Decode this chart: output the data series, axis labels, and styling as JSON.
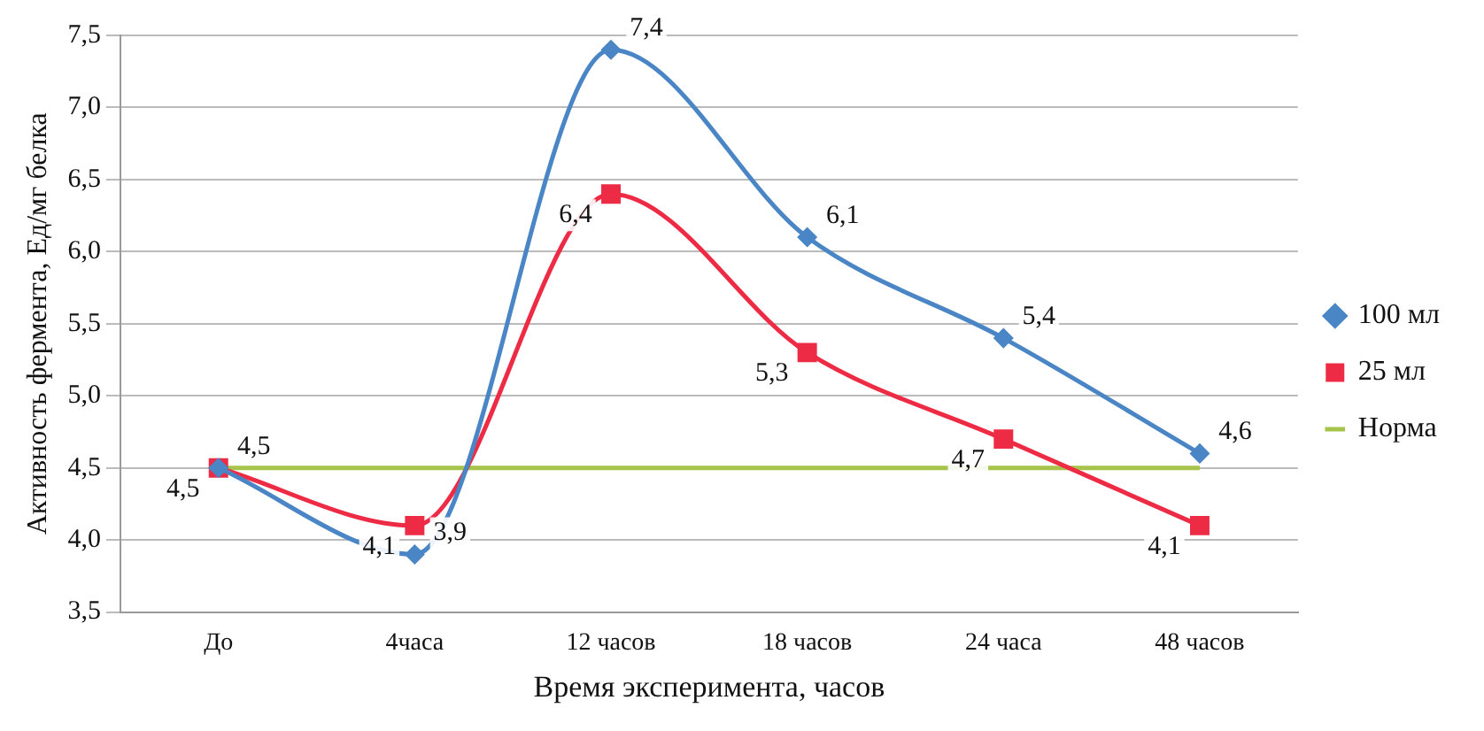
{
  "chart_data": {
    "type": "line",
    "xlabel": "Время эксперимента, часов",
    "ylabel": "Активность фермента, Ед/мг белка",
    "categories": [
      "До",
      "4часа",
      "12 часов",
      "18 часов",
      "24 часа",
      "48 часов"
    ],
    "series": [
      {
        "name": "100 мл",
        "color": "#4a86c5",
        "marker": "diamond",
        "values": [
          4.5,
          3.9,
          7.4,
          6.1,
          5.4,
          4.6
        ],
        "value_labels": [
          "4,5",
          "3,9",
          "7,4",
          "6,1",
          "5,4",
          "4,6"
        ]
      },
      {
        "name": "25 мл",
        "color": "#ee2b45",
        "marker": "square",
        "values": [
          4.5,
          4.1,
          6.4,
          5.3,
          4.7,
          4.1
        ],
        "value_labels": [
          "4,5",
          "4,1",
          "6,4",
          "5,3",
          "4,7",
          "4,1"
        ]
      },
      {
        "name": "Норма",
        "color": "#a6c44a",
        "marker": "none",
        "values": [
          4.5,
          4.5,
          4.5,
          4.5,
          4.5,
          4.5
        ]
      }
    ],
    "ylim": [
      3.5,
      7.5
    ],
    "yticks": [
      {
        "value": 3.5,
        "label": "3,5"
      },
      {
        "value": 4,
        "label": "4,0"
      },
      {
        "value": 4.5,
        "label": "4,5"
      },
      {
        "value": 5,
        "label": "5,0"
      },
      {
        "value": 5.5,
        "label": "5,5"
      },
      {
        "value": 6,
        "label": "6,0"
      },
      {
        "value": 6.5,
        "label": "6,5"
      },
      {
        "value": 7,
        "label": "7,0"
      },
      {
        "value": 7.5,
        "label": "7,5"
      }
    ],
    "grid": "y",
    "legend": "right"
  }
}
